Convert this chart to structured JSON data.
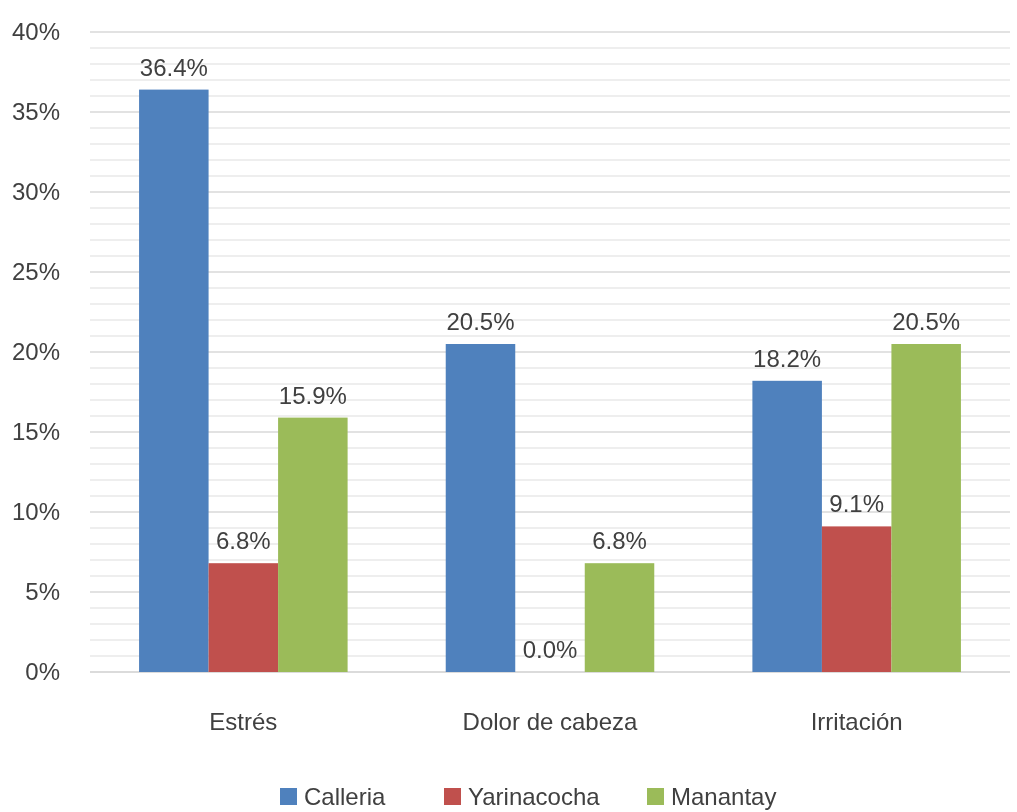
{
  "chart_data": {
    "type": "bar",
    "categories": [
      "Estrés",
      "Dolor de cabeza",
      "Irritación"
    ],
    "series": [
      {
        "name": "Calleria",
        "color": "#4f81bd",
        "values": [
          36.4,
          20.5,
          18.2
        ],
        "value_labels": [
          "36.4%",
          "20.5%",
          "18.2%"
        ]
      },
      {
        "name": "Yarinacocha",
        "color": "#c0504d",
        "values": [
          6.8,
          0.0,
          9.1
        ],
        "value_labels": [
          "6.8%",
          "0.0%",
          "9.1%"
        ]
      },
      {
        "name": "Manantay",
        "color": "#9bbb59",
        "values": [
          15.9,
          6.8,
          20.5
        ],
        "value_labels": [
          "15.9%",
          "6.8%",
          "20.5%"
        ]
      }
    ],
    "ylim": [
      0,
      40
    ],
    "yticks": [
      {
        "value": 0,
        "label": "0%"
      },
      {
        "value": 1,
        "label": null
      },
      {
        "value": 2,
        "label": null
      },
      {
        "value": 3,
        "label": null
      },
      {
        "value": 4,
        "label": null
      },
      {
        "value": 5,
        "label": "5%"
      },
      {
        "value": 6,
        "label": null
      },
      {
        "value": 7,
        "label": null
      },
      {
        "value": 8,
        "label": null
      },
      {
        "value": 9,
        "label": null
      },
      {
        "value": 10,
        "label": "10%"
      },
      {
        "value": 11,
        "label": null
      },
      {
        "value": 12,
        "label": null
      },
      {
        "value": 13,
        "label": null
      },
      {
        "value": 14,
        "label": null
      },
      {
        "value": 15,
        "label": "15%"
      },
      {
        "value": 16,
        "label": null
      },
      {
        "value": 17,
        "label": null
      },
      {
        "value": 18,
        "label": null
      },
      {
        "value": 19,
        "label": null
      },
      {
        "value": 20,
        "label": "20%"
      },
      {
        "value": 21,
        "label": null
      },
      {
        "value": 22,
        "label": null
      },
      {
        "value": 23,
        "label": null
      },
      {
        "value": 24,
        "label": null
      },
      {
        "value": 25,
        "label": "25%"
      },
      {
        "value": 26,
        "label": null
      },
      {
        "value": 27,
        "label": null
      },
      {
        "value": 28,
        "label": null
      },
      {
        "value": 29,
        "label": null
      },
      {
        "value": 30,
        "label": "30%"
      },
      {
        "value": 31,
        "label": null
      },
      {
        "value": 32,
        "label": null
      },
      {
        "value": 33,
        "label": null
      },
      {
        "value": 34,
        "label": null
      },
      {
        "value": 35,
        "label": "35%"
      },
      {
        "value": 36,
        "label": null
      },
      {
        "value": 37,
        "label": null
      },
      {
        "value": 38,
        "label": null
      },
      {
        "value": 39,
        "label": null
      },
      {
        "value": 40,
        "label": "40%"
      }
    ],
    "grid": true,
    "legend": "bottom"
  }
}
